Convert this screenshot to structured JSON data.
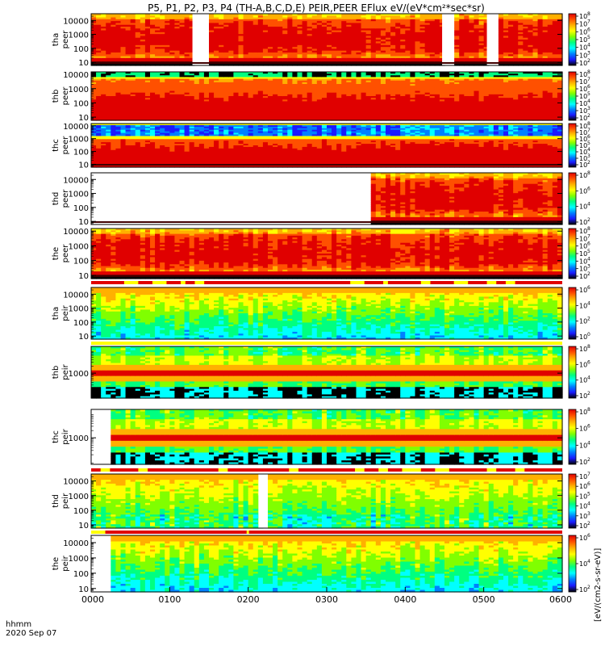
{
  "title": "P5, P1, P2, P3, P4 (TH-A,B,C,D,E) PEIR,PEER EFlux eV/(eV*cm²*sec*sr)",
  "footer": {
    "time_label": "hhmm",
    "date_label": "2020 Sep 07"
  },
  "colorbar_unit_label": "[eV/(cm2-s-sr-eV)]",
  "palette": [
    "#000000",
    "#1a1aff",
    "#0080ff",
    "#00ffff",
    "#00ff80",
    "#80ff00",
    "#ffff00",
    "#ffb000",
    "#ff5000",
    "#e00000"
  ],
  "chart_data": {
    "type": "heatmap",
    "x_range": [
      "0000",
      "0600"
    ],
    "x_tick_labels": [
      "0000",
      "0100",
      "0200",
      "0300",
      "0400",
      "0500",
      "0600"
    ],
    "panels": [
      {
        "id": "tha-peer",
        "label_line1": "tha",
        "label_line2": "peer",
        "ylog": true,
        "y_ticks": [
          10,
          100,
          1000,
          10000
        ],
        "y_tick_labels": [
          "10",
          "100",
          "1000",
          "10000"
        ],
        "ylim": [
          6,
          30000
        ],
        "cbar_exponents": [
          "2",
          "3",
          "4",
          "5",
          "6",
          "7",
          "8"
        ],
        "gaps": [
          [
            0.215,
            0.24
          ],
          [
            0.745,
            0.77
          ],
          [
            0.84,
            0.86
          ]
        ],
        "bottom_band": true,
        "style": "peer-hot"
      },
      {
        "id": "thb-peer",
        "label_line1": "thb",
        "label_line2": "peer",
        "ylog": true,
        "y_ticks": [
          10,
          100,
          1000,
          10000
        ],
        "y_tick_labels": [
          "10",
          "100",
          "1000",
          "10000"
        ],
        "ylim": [
          6,
          15000
        ],
        "cbar_exponents": [
          "2",
          "3",
          "4",
          "5",
          "6",
          "7",
          "8"
        ],
        "gaps": [],
        "bottom_band": false,
        "style": "peer-noisy"
      },
      {
        "id": "thc-peer",
        "label_line1": "thc",
        "label_line2": "peer",
        "ylog": true,
        "y_ticks": [
          10,
          100,
          1000,
          10000
        ],
        "y_tick_labels": [
          "10",
          "100",
          "1000",
          "10000"
        ],
        "ylim": [
          6,
          15000
        ],
        "cbar_exponents": [
          "2",
          "3",
          "4",
          "5",
          "6",
          "7",
          "8"
        ],
        "gaps": [],
        "bottom_band": true,
        "style": "peer-blue"
      },
      {
        "id": "thd-peer",
        "label_line1": "thd",
        "label_line2": "peer",
        "ylog": true,
        "y_ticks": [
          10,
          100,
          1000,
          10000
        ],
        "y_tick_labels": [
          "10",
          "100",
          "1000",
          "10000"
        ],
        "ylim": [
          6,
          30000
        ],
        "cbar_exponents": [
          "2",
          "4",
          "6",
          "8"
        ],
        "gaps": [
          [
            0.0,
            0.59
          ]
        ],
        "bottom_band": true,
        "style": "peer-hot"
      },
      {
        "id": "the-peer",
        "label_line1": "the",
        "label_line2": "peer",
        "ylog": true,
        "y_ticks": [
          10,
          100,
          1000,
          10000
        ],
        "y_tick_labels": [
          "10",
          "100",
          "1000",
          "10000"
        ],
        "ylim": [
          6,
          15000
        ],
        "cbar_exponents": [
          "2",
          "3",
          "4",
          "5",
          "6",
          "7",
          "8"
        ],
        "gaps": [],
        "bottom_band": true,
        "style": "peer-hot"
      },
      {
        "id": "tha-peir",
        "label_line1": "tha",
        "label_line2": "peir",
        "ylog": true,
        "y_ticks": [
          10,
          100,
          1000,
          10000
        ],
        "y_tick_labels": [
          "10",
          "100",
          "1000",
          "10000"
        ],
        "ylim": [
          6,
          30000
        ],
        "cbar_exponents": [
          "0",
          "2",
          "4",
          "6"
        ],
        "gaps": [],
        "bottom_band": false,
        "style": "peir"
      },
      {
        "id": "thb-peir",
        "label_line1": "thb",
        "label_line2": "peir",
        "ylog": true,
        "y_ticks": [
          1000
        ],
        "y_tick_labels": [
          "1000"
        ],
        "ylim": [
          80,
          15000
        ],
        "cbar_exponents": [
          "2",
          "4",
          "6",
          "8"
        ],
        "gaps": [],
        "bottom_band": false,
        "style": "peir-bands"
      },
      {
        "id": "thc-peir",
        "label_line1": "thc",
        "label_line2": "peir",
        "ylog": true,
        "y_ticks": [
          1000
        ],
        "y_tick_labels": [
          "1000"
        ],
        "ylim": [
          80,
          15000
        ],
        "cbar_exponents": [
          "2",
          "4",
          "6",
          "8"
        ],
        "gaps": [
          [
            0.0,
            0.035
          ]
        ],
        "bottom_band": false,
        "style": "peir-bands"
      },
      {
        "id": "thd-peir",
        "label_line1": "thd",
        "label_line2": "peir",
        "ylog": true,
        "y_ticks": [
          10,
          100,
          1000,
          10000
        ],
        "y_tick_labels": [
          "10",
          "100",
          "1000",
          "10000"
        ],
        "ylim": [
          6,
          30000
        ],
        "cbar_exponents": [
          "2",
          "3",
          "4",
          "5",
          "6",
          "7"
        ],
        "gaps": [
          [
            0.355,
            0.375
          ]
        ],
        "bottom_band": false,
        "style": "peir-blue"
      },
      {
        "id": "the-peir",
        "label_line1": "the",
        "label_line2": "peir",
        "ylog": true,
        "y_ticks": [
          10,
          100,
          1000,
          10000
        ],
        "y_tick_labels": [
          "10",
          "100",
          "1000",
          "10000"
        ],
        "ylim": [
          6,
          30000
        ],
        "cbar_exponents": [
          "2",
          "4",
          "6"
        ],
        "gaps": [
          [
            0.0,
            0.035
          ]
        ],
        "bottom_band": false,
        "style": "peir"
      }
    ],
    "status_strips": [
      {
        "after_panel": "the-peer",
        "color": "red",
        "flags": [
          [
            0.07,
            0.1
          ],
          [
            0.13,
            0.16
          ],
          [
            0.19,
            0.2
          ],
          [
            0.22,
            0.24
          ],
          [
            0.55,
            0.58
          ],
          [
            0.62,
            0.63
          ],
          [
            0.7,
            0.72
          ],
          [
            0.77,
            0.8
          ],
          [
            0.84,
            0.86
          ],
          [
            0.88,
            0.9
          ]
        ]
      },
      {
        "after_panel": "tha-peir",
        "color": "yellow",
        "flags": []
      },
      {
        "after_panel": "thc-peir",
        "color": "red",
        "flags": [
          [
            0.02,
            0.04
          ],
          [
            0.1,
            0.12
          ],
          [
            0.27,
            0.29
          ],
          [
            0.42,
            0.44
          ],
          [
            0.56,
            0.58
          ],
          [
            0.61,
            0.63
          ],
          [
            0.66,
            0.7
          ],
          [
            0.73,
            0.76
          ],
          [
            0.84,
            0.86
          ],
          [
            0.9,
            0.92
          ]
        ]
      },
      {
        "after_panel": "thd-peir",
        "color": "red",
        "flags": [
          [
            0.0,
            0.03
          ],
          [
            0.33,
            0.335
          ]
        ]
      }
    ]
  }
}
